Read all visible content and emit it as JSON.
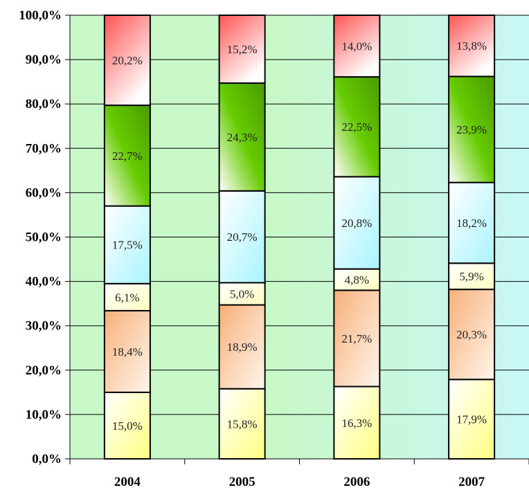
{
  "chart_data": {
    "type": "bar",
    "stacked": true,
    "percent": true,
    "categories": [
      "2004",
      "2005",
      "2006",
      "2007"
    ],
    "series": [
      {
        "values": [
          15.0,
          15.8,
          16.3,
          17.9
        ],
        "labels": [
          "15,0%",
          "15,8%",
          "16,3%",
          "17,9%"
        ],
        "color": "#ffff80"
      },
      {
        "values": [
          18.4,
          18.9,
          21.7,
          20.3
        ],
        "labels": [
          "18,4%",
          "18,9%",
          "21,7%",
          "20,3%"
        ],
        "color": "#f7b07a"
      },
      {
        "values": [
          6.1,
          5.0,
          4.8,
          5.9
        ],
        "labels": [
          "6,1%",
          "5,0%",
          "4,8%",
          "5,9%"
        ],
        "color": "#ffffc0"
      },
      {
        "values": [
          17.5,
          20.7,
          20.8,
          18.2
        ],
        "labels": [
          "17,5%",
          "20,7%",
          "20,8%",
          "18,2%"
        ],
        "color": "#a8f4ff"
      },
      {
        "values": [
          22.7,
          24.3,
          22.5,
          23.9
        ],
        "labels": [
          "22,7%",
          "24,3%",
          "22,5%",
          "23,9%"
        ],
        "color": "#66cc00"
      },
      {
        "values": [
          20.2,
          15.2,
          14.0,
          13.8
        ],
        "labels": [
          "20,2%",
          "15,2%",
          "14,0%",
          "13,8%"
        ],
        "color": "#ff5555"
      }
    ],
    "y_ticks": [
      "0,0%",
      "10,0%",
      "20,0%",
      "30,0%",
      "40,0%",
      "50,0%",
      "60,0%",
      "70,0%",
      "80,0%",
      "90,0%",
      "100,0%"
    ],
    "ylim": [
      0,
      100
    ],
    "grid": true,
    "legend": "none",
    "title": "",
    "xlabel": "",
    "ylabel": "",
    "background_colors": [
      "#c8f7c8",
      "#c8f7f7"
    ]
  }
}
